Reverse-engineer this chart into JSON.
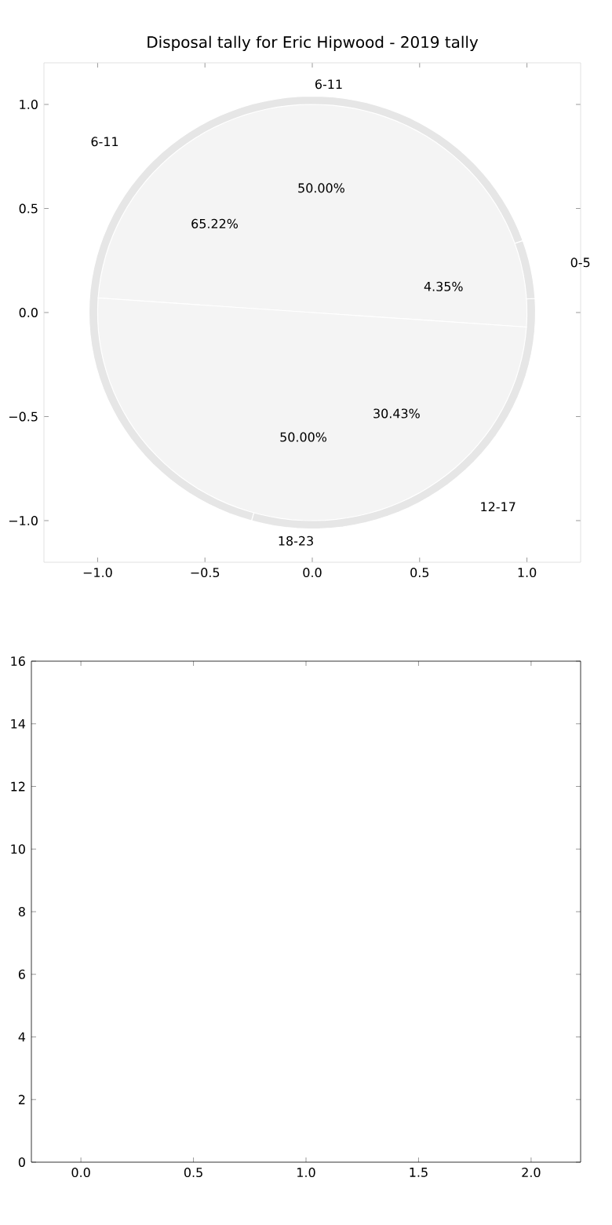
{
  "chart_data": [
    {
      "type": "scatter",
      "title": "Disposal tally for Eric Hipwood - 2019 tally",
      "xlim": [
        -1.25,
        1.25
      ],
      "ylim": [
        -1.2,
        1.2
      ],
      "xticks": [
        {
          "value": -1.0,
          "label": "−1.0"
        },
        {
          "value": -0.5,
          "label": "−0.5"
        },
        {
          "value": 0,
          "label": "0.0"
        },
        {
          "value": 0.5,
          "label": "0.5"
        },
        {
          "value": 1.0,
          "label": "1.0"
        }
      ],
      "yticks": [
        {
          "value": -1.0,
          "label": "−1.0"
        },
        {
          "value": -0.5,
          "label": "−0.5"
        },
        {
          "value": 0,
          "label": "0.0"
        },
        {
          "value": 0.5,
          "label": "0.5"
        },
        {
          "value": 1.0,
          "label": "1.0"
        }
      ]
    },
    {
      "type": "pie",
      "categories": [
        "12-17",
        "0-5",
        "6-11"
      ],
      "values": [
        30.43,
        4.35,
        65.22
      ],
      "value_labels": [
        "30.43%",
        "4.35%",
        "65.22%"
      ],
      "colors": [
        "#e6e6e6",
        "#e6e6e6",
        "#e6e6e6"
      ]
    },
    {
      "type": "pie",
      "categories": [
        "6-11",
        "18-23"
      ],
      "values": [
        50,
        50
      ],
      "value_labels": [
        "50.00%",
        "50.00%"
      ],
      "colors": [
        "#f4f4f4",
        "#f4f4f4"
      ]
    },
    {
      "type": "bar",
      "xlim": [
        -0.22,
        2.22
      ],
      "ylim": [
        0,
        16
      ],
      "xticks": [
        {
          "value": 0,
          "label": "0.0"
        },
        {
          "value": 0.5,
          "label": "0.5"
        },
        {
          "value": 1.0,
          "label": "1.0"
        },
        {
          "value": 1.5,
          "label": "1.5"
        },
        {
          "value": 2.0,
          "label": "2.0"
        }
      ],
      "yticks": [
        0,
        2,
        4,
        6,
        8,
        10,
        12,
        14,
        16
      ]
    }
  ]
}
